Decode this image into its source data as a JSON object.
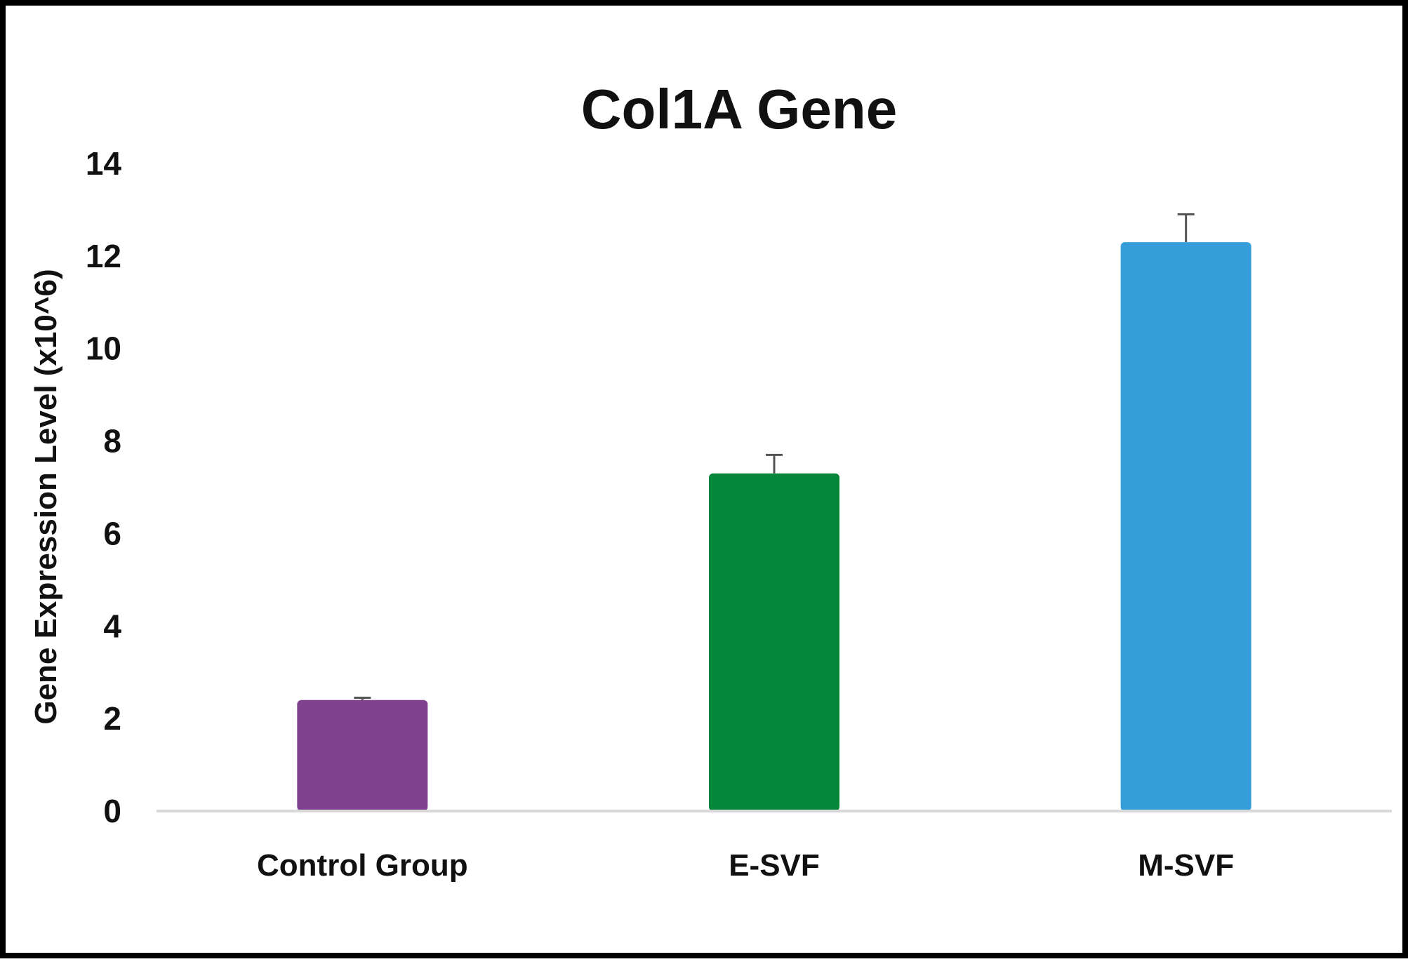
{
  "chart_data": {
    "type": "bar",
    "title": "Col1A Gene",
    "xlabel": "",
    "ylabel": "Gene Expression Level (x10^6)",
    "categories": [
      "Control Group",
      "E-SVF",
      "M-SVF"
    ],
    "values": [
      2.4,
      7.3,
      12.3
    ],
    "errors": [
      0.05,
      0.4,
      0.6
    ],
    "colors": [
      "#80418F",
      "#04863B",
      "#359EDA"
    ],
    "ylim": [
      0,
      14
    ],
    "yticks": [
      "0",
      "2",
      "4",
      "6",
      "8",
      "10",
      "12",
      "14"
    ],
    "grid": false,
    "legend": "none",
    "error_bar_color": "#555555",
    "axis_color": "#D9D9D9"
  }
}
